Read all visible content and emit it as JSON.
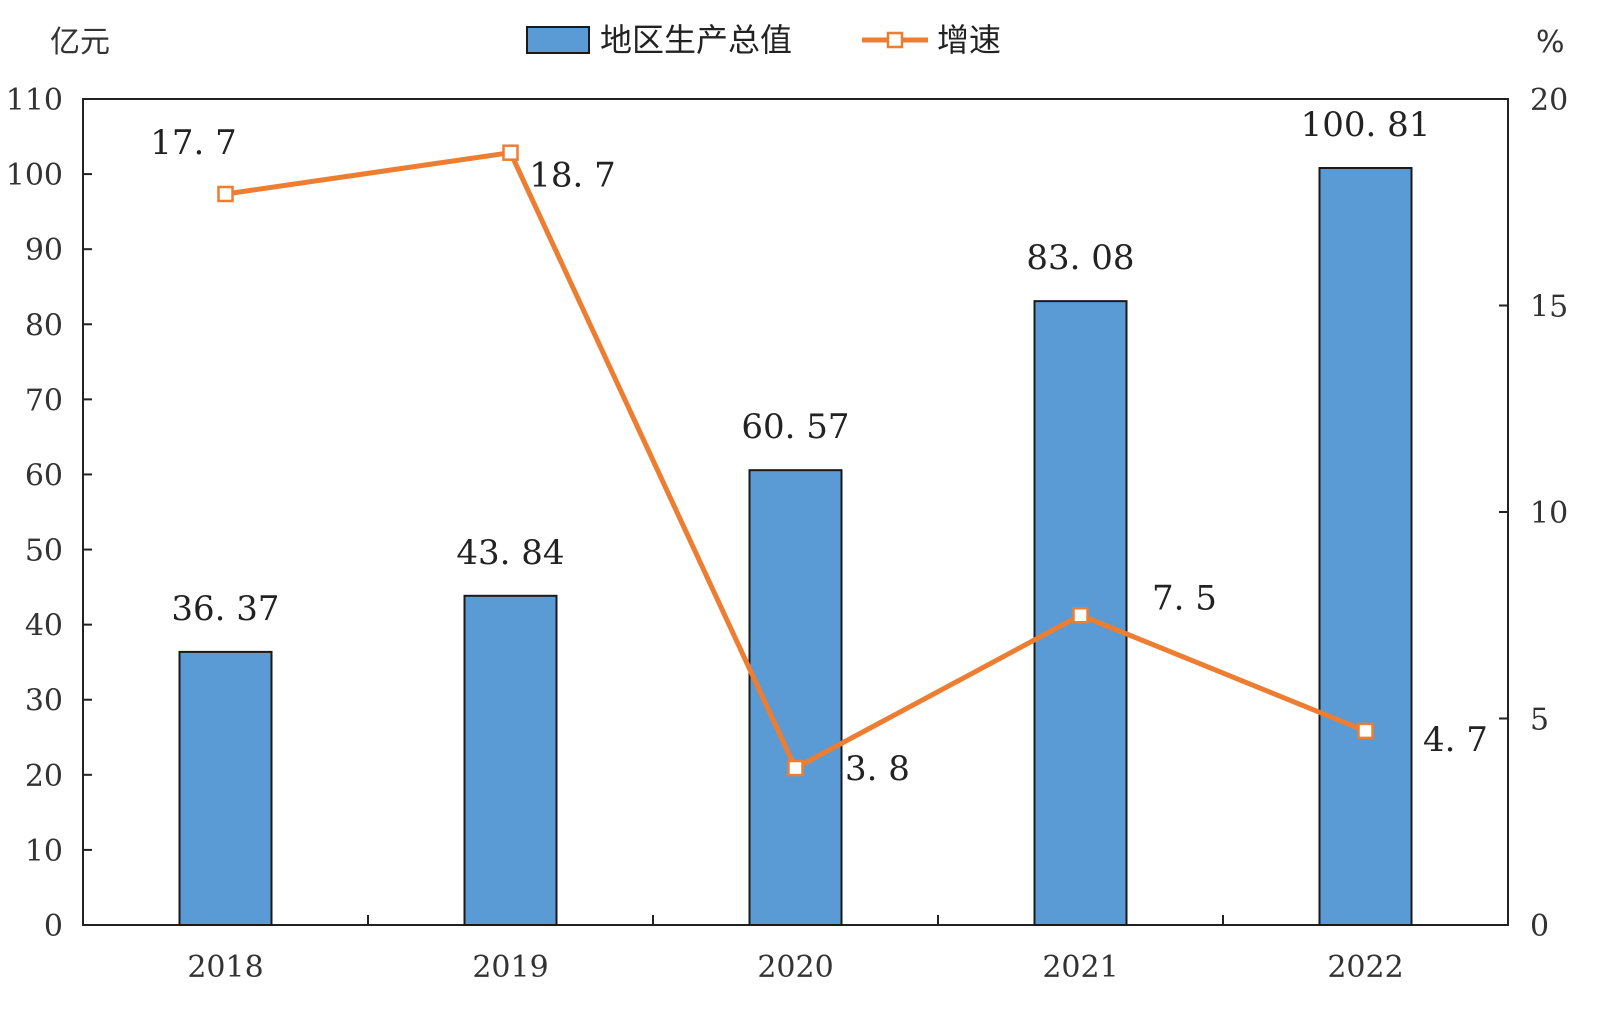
{
  "chart_data": {
    "type": "bar",
    "categories": [
      "2018",
      "2019",
      "2020",
      "2021",
      "2022"
    ],
    "series": [
      {
        "name": "地区生产总值",
        "type": "bar",
        "axis": "left",
        "values": [
          36.37,
          43.84,
          60.57,
          83.08,
          100.81
        ],
        "labels": [
          "36. 37",
          "43. 84",
          "60. 57",
          "83. 08",
          "100. 81"
        ],
        "color": "#5B9BD5"
      },
      {
        "name": "增速",
        "type": "line",
        "axis": "right",
        "values": [
          17.7,
          18.7,
          3.8,
          7.5,
          4.7
        ],
        "labels": [
          "17. 7",
          "18. 7",
          "3. 8",
          "7. 5",
          "4. 7"
        ],
        "color": "#ED7D31"
      }
    ],
    "y_left": {
      "unit": "亿元",
      "range": [
        0,
        110
      ],
      "ticks": [
        "0",
        "10",
        "20",
        "30",
        "40",
        "50",
        "60",
        "70",
        "80",
        "90",
        "100",
        "110"
      ]
    },
    "y_right": {
      "unit": "%",
      "range": [
        0,
        20
      ],
      "ticks": [
        "0",
        "5",
        "10",
        "15",
        "20"
      ]
    },
    "grid": false,
    "legend_position": "top-center"
  }
}
